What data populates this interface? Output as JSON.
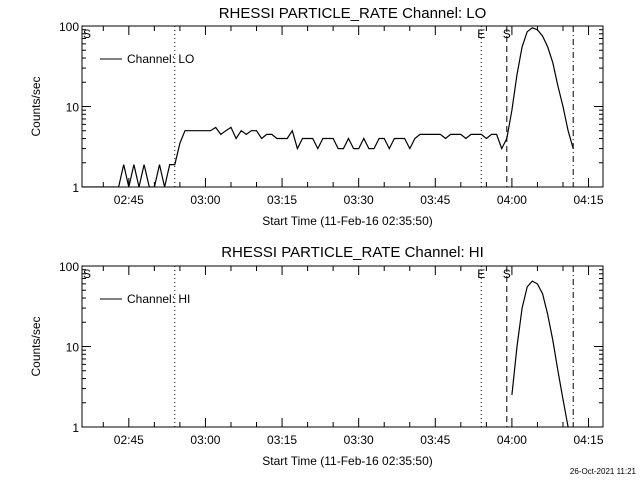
{
  "stamp": "26-Oct-2021 11:21",
  "chart_data": [
    {
      "type": "line",
      "title": "RHESSI PARTICLE_RATE Channel: LO",
      "xlabel": "Start Time (11-Feb-16 02:35:50)",
      "ylabel": "Counts/sec",
      "yscale": "log",
      "ylim": [
        1,
        100
      ],
      "xlim_minutes_after_0235_50": [
        0,
        102
      ],
      "x_ticks": [
        "02:45",
        "03:00",
        "03:15",
        "03:30",
        "03:45",
        "04:00",
        "04:15"
      ],
      "y_ticks": [
        "1",
        "10",
        "100"
      ],
      "legend": {
        "label": "Channel: LO",
        "placement": "top-left"
      },
      "grid": false,
      "markers": [
        {
          "label": "S",
          "time": "02:35:50",
          "style": "dash-dot"
        },
        {
          "label": "",
          "time": "02:54:00",
          "style": "dotted"
        },
        {
          "label": "E",
          "time": "03:54:00",
          "style": "dotted"
        },
        {
          "label": "S",
          "time": "03:59:00",
          "style": "dashed"
        },
        {
          "label": "",
          "time": "04:12:00",
          "style": "dash-dot"
        }
      ],
      "series": [
        {
          "x": [
            "02:36",
            "02:37",
            "02:38",
            "02:39",
            "02:40",
            "02:41",
            "02:42",
            "02:43",
            "02:44",
            "02:45",
            "02:46",
            "02:47",
            "02:48",
            "02:49",
            "02:50",
            "02:51",
            "02:52",
            "02:53",
            "02:54",
            "02:55",
            "02:56",
            "02:57",
            "02:58",
            "02:59",
            "03:00",
            "03:01",
            "03:02",
            "03:03",
            "03:04",
            "03:05",
            "03:06",
            "03:07",
            "03:08",
            "03:09",
            "03:10",
            "03:11",
            "03:12",
            "03:13",
            "03:14",
            "03:15",
            "03:16",
            "03:17",
            "03:18",
            "03:19",
            "03:20",
            "03:21",
            "03:22",
            "03:23",
            "03:24",
            "03:25",
            "03:26",
            "03:27",
            "03:28",
            "03:29",
            "03:30",
            "03:31",
            "03:32",
            "03:33",
            "03:34",
            "03:35",
            "03:36",
            "03:37",
            "03:38",
            "03:39",
            "03:40",
            "03:41",
            "03:42",
            "03:43",
            "03:44",
            "03:45",
            "03:46",
            "03:47",
            "03:48",
            "03:49",
            "03:50",
            "03:51",
            "03:52",
            "03:53",
            "03:54",
            "03:55",
            "03:56",
            "03:57",
            "03:58",
            "03:59",
            "04:00",
            "04:01",
            "04:02",
            "04:03",
            "04:04",
            "04:05",
            "04:06",
            "04:07",
            "04:08",
            "04:09",
            "04:10",
            "04:11",
            "04:12"
          ],
          "values": [
            1,
            1,
            1,
            1,
            1,
            1,
            1,
            1,
            1.9,
            1,
            1.9,
            1,
            1.9,
            1,
            1,
            1.9,
            1,
            1.9,
            1.9,
            3.5,
            5,
            5,
            5,
            5,
            5,
            5,
            5.5,
            4.5,
            5,
            5.5,
            4,
            5,
            4.5,
            5,
            5,
            4,
            4.5,
            4.5,
            4,
            4,
            4,
            5,
            3,
            4,
            4,
            4,
            3,
            4,
            4,
            4,
            3,
            3,
            4,
            3,
            3,
            4,
            3,
            3,
            4,
            4,
            3,
            4,
            4,
            4,
            3,
            4,
            4.5,
            4.5,
            4.5,
            4.5,
            4.5,
            4,
            4.5,
            4.5,
            4.5,
            4,
            4.5,
            4.5,
            4.5,
            4,
            4.5,
            4.5,
            3,
            4,
            9,
            25,
            55,
            85,
            95,
            90,
            75,
            55,
            35,
            18,
            10,
            5,
            3
          ]
        }
      ]
    },
    {
      "type": "line",
      "title": "RHESSI PARTICLE_RATE Channel: HI",
      "xlabel": "Start Time (11-Feb-16 02:35:50)",
      "ylabel": "Counts/sec",
      "yscale": "log",
      "ylim": [
        1,
        100
      ],
      "xlim_minutes_after_0235_50": [
        0,
        102
      ],
      "x_ticks": [
        "02:45",
        "03:00",
        "03:15",
        "03:30",
        "03:45",
        "04:00",
        "04:15"
      ],
      "y_ticks": [
        "1",
        "10",
        "100"
      ],
      "legend": {
        "label": "Channel: HI",
        "placement": "top-left"
      },
      "grid": false,
      "markers": [
        {
          "label": "S",
          "time": "02:35:50",
          "style": "dash-dot"
        },
        {
          "label": "",
          "time": "02:54:00",
          "style": "dotted"
        },
        {
          "label": "E",
          "time": "03:54:00",
          "style": "dotted"
        },
        {
          "label": "S",
          "time": "03:59:00",
          "style": "dashed"
        },
        {
          "label": "",
          "time": "04:12:00",
          "style": "dash-dot"
        }
      ],
      "series": [
        {
          "x": [
            "04:00",
            "04:01",
            "04:02",
            "04:03",
            "04:04",
            "04:05",
            "04:06",
            "04:07",
            "04:08",
            "04:09",
            "04:10",
            "04:11"
          ],
          "values": [
            2.5,
            10,
            30,
            55,
            65,
            60,
            45,
            25,
            12,
            5,
            2.2,
            1
          ]
        }
      ]
    }
  ]
}
